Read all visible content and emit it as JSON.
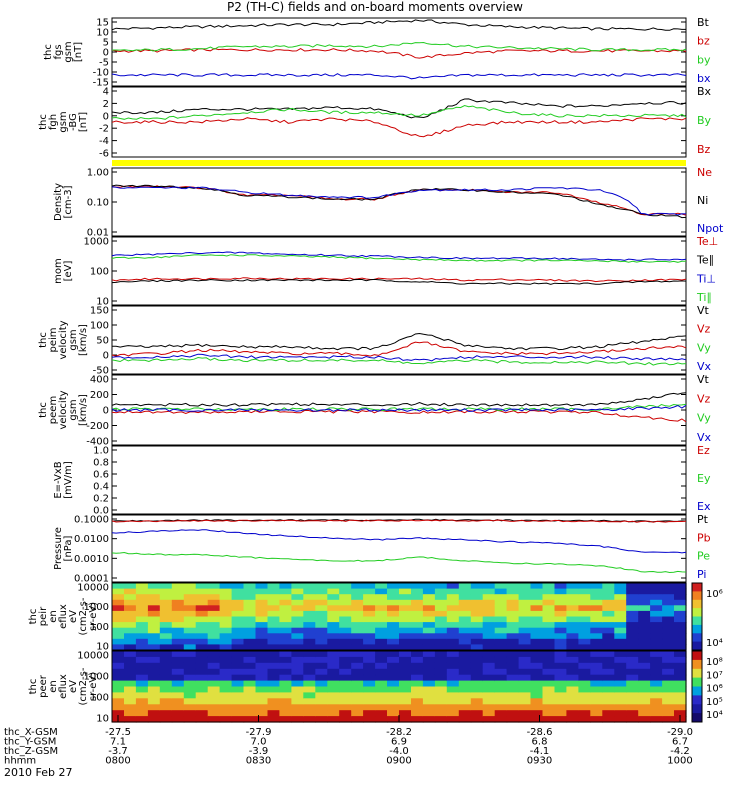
{
  "title": "P2 (TH-C) fields and on-board moments overview",
  "date_label": "2010 Feb 27",
  "colors": {
    "black": "#000000",
    "red": "#cc0000",
    "green": "#22cc22",
    "blue": "#0000cc",
    "yellow": "#ffff00"
  },
  "chart_data": [
    {
      "type": "line",
      "panel": "fgs",
      "ylabel": [
        "thc",
        "fgs",
        "gsm",
        "[nT]"
      ],
      "yticks": [
        "15",
        "10",
        "5",
        "0",
        "-5",
        "-10",
        "-15"
      ],
      "ylim": [
        -15,
        16
      ],
      "series": [
        {
          "name": "Bt",
          "color": "#000000",
          "values": [
            11,
            11.5,
            12,
            12.5,
            13,
            13,
            14,
            15,
            13,
            12,
            11.5,
            11,
            11,
            11
          ]
        },
        {
          "name": "bz",
          "color": "#cc0000",
          "values": [
            1,
            1,
            1.5,
            1.5,
            1.5,
            1.5,
            1,
            -2,
            0,
            1,
            1,
            1,
            1,
            1
          ]
        },
        {
          "name": "by",
          "color": "#22cc22",
          "values": [
            1,
            1.5,
            2,
            3,
            3,
            3.5,
            3,
            5,
            3,
            2.5,
            2,
            1.5,
            1.5,
            1.5
          ]
        },
        {
          "name": "bx",
          "color": "#0000cc",
          "values": [
            -10,
            -10,
            -10,
            -10,
            -10,
            -10,
            -10,
            -11.5,
            -10,
            -10,
            -10,
            -10,
            -10,
            -10
          ]
        }
      ]
    },
    {
      "type": "line",
      "panel": "fgh",
      "ylabel": [
        "thc",
        "fgh",
        "gsm",
        "-BG",
        "[nT]"
      ],
      "yticks": [
        "4",
        "2",
        "0",
        "-2",
        "-4",
        "-6"
      ],
      "ylim": [
        -7,
        4
      ],
      "series": [
        {
          "name": "Bx",
          "color": "#000000",
          "values": [
            0,
            0,
            0.5,
            0.5,
            0.5,
            0.8,
            0.5,
            -1,
            2,
            1.5,
            1,
            1,
            1.5,
            1.5
          ]
        },
        {
          "name": "By",
          "color": "#22cc22",
          "values": [
            -1,
            -1,
            -0.5,
            0,
            0.5,
            0,
            0,
            -0.5,
            1,
            0,
            -0.5,
            -0.5,
            -0.5,
            -0.5
          ]
        },
        {
          "name": "Bz",
          "color": "#cc0000",
          "values": [
            -1.5,
            -1.5,
            -1.5,
            -1,
            -1.5,
            -1,
            -1.5,
            -4,
            -2,
            -1.5,
            -1.5,
            -1.5,
            -1,
            -1
          ]
        }
      ]
    },
    {
      "type": "line",
      "panel": "density",
      "scale": "log",
      "ylabel": [
        "Density",
        "[cm-3]"
      ],
      "yticks": [
        "1.00",
        "0.10",
        "0.01"
      ],
      "ylim": [
        0.01,
        1.5
      ],
      "series": [
        {
          "name": "Ne",
          "color": "#cc0000",
          "values": [
            0.38,
            0.38,
            0.35,
            0.2,
            0.2,
            0.15,
            0.15,
            0.3,
            0.3,
            0.25,
            0.25,
            0.12,
            0.05,
            0.05
          ]
        },
        {
          "name": "Ni",
          "color": "#000000",
          "values": [
            0.4,
            0.4,
            0.35,
            0.2,
            0.18,
            0.15,
            0.15,
            0.32,
            0.3,
            0.25,
            0.22,
            0.1,
            0.05,
            0.04
          ]
        },
        {
          "name": "Npot",
          "color": "#0000cc",
          "values": [
            0.35,
            0.35,
            0.35,
            0.25,
            0.2,
            0.18,
            0.17,
            0.3,
            0.3,
            0.3,
            0.35,
            0.3,
            0.05,
            0.05
          ]
        }
      ]
    },
    {
      "type": "line",
      "panel": "mom",
      "scale": "log",
      "ylabel": [
        "mom",
        "[eV]"
      ],
      "yticks": [
        "1000",
        "100",
        "10"
      ],
      "ylim": [
        10,
        3000
      ],
      "series": [
        {
          "name": "Te⊥",
          "color": "#cc0000",
          "values": [
            80,
            90,
            90,
            95,
            90,
            90,
            90,
            90,
            80,
            85,
            80,
            75,
            80,
            85
          ]
        },
        {
          "name": "Te∥",
          "color": "#000000",
          "values": [
            70,
            75,
            80,
            80,
            80,
            80,
            80,
            70,
            60,
            60,
            60,
            60,
            70,
            75
          ]
        },
        {
          "name": "Ti⊥",
          "color": "#0000cc",
          "values": [
            650,
            700,
            800,
            800,
            700,
            650,
            600,
            550,
            500,
            500,
            500,
            450,
            450,
            450
          ]
        },
        {
          "name": "Ti∥",
          "color": "#22cc22",
          "values": [
            500,
            550,
            650,
            650,
            600,
            550,
            500,
            450,
            420,
            420,
            420,
            400,
            380,
            380
          ]
        }
      ]
    },
    {
      "type": "line",
      "panel": "peim",
      "ylabel": [
        "thc",
        "peim",
        "velocity",
        "gsm",
        "[km/s]"
      ],
      "yticks": [
        "150",
        "100",
        "50",
        "0",
        "-50"
      ],
      "ylim": [
        -50,
        150
      ],
      "series": [
        {
          "name": "Vt",
          "color": "#000000",
          "values": [
            30,
            30,
            35,
            30,
            30,
            25,
            25,
            70,
            35,
            25,
            25,
            30,
            45,
            60
          ]
        },
        {
          "name": "Vz",
          "color": "#cc0000",
          "values": [
            5,
            10,
            20,
            15,
            10,
            10,
            5,
            45,
            15,
            10,
            10,
            15,
            25,
            30
          ]
        },
        {
          "name": "Vy",
          "color": "#22cc22",
          "values": [
            -10,
            -10,
            -5,
            -10,
            -10,
            -10,
            -10,
            -20,
            -10,
            -15,
            -15,
            -15,
            -20,
            -20
          ]
        },
        {
          "name": "Vx",
          "color": "#0000cc",
          "values": [
            0,
            0,
            5,
            0,
            0,
            0,
            0,
            -10,
            0,
            0,
            0,
            0,
            -5,
            -5
          ]
        }
      ]
    },
    {
      "type": "line",
      "panel": "peem",
      "ylabel": [
        "thc",
        "peem",
        "velocity",
        "gsm",
        "[km/s]"
      ],
      "yticks": [
        "400",
        "200",
        "0",
        "-200",
        "-400"
      ],
      "ylim": [
        -400,
        400
      ],
      "series": [
        {
          "name": "Vt",
          "color": "#000000",
          "values": [
            60,
            60,
            60,
            60,
            70,
            60,
            60,
            70,
            60,
            60,
            60,
            60,
            120,
            200
          ]
        },
        {
          "name": "Vz",
          "color": "#cc0000",
          "values": [
            -20,
            -20,
            -30,
            -20,
            -20,
            -20,
            -20,
            -30,
            -20,
            -20,
            -20,
            -30,
            -80,
            -120
          ]
        },
        {
          "name": "Vy",
          "color": "#22cc22",
          "values": [
            10,
            10,
            10,
            10,
            10,
            10,
            10,
            10,
            10,
            10,
            10,
            10,
            40,
            60
          ]
        },
        {
          "name": "Vx",
          "color": "#0000cc",
          "values": [
            0,
            0,
            0,
            0,
            0,
            0,
            0,
            0,
            0,
            0,
            0,
            0,
            20,
            40
          ]
        }
      ]
    },
    {
      "type": "line",
      "panel": "efield",
      "ylabel": [
        "E=-VxB",
        "[mV/m]"
      ],
      "yticks": [
        "1.0",
        "0.8",
        "0.6",
        "0.4",
        "0.2",
        "0.0"
      ],
      "ylim": [
        0,
        1
      ],
      "series": [
        {
          "name": "Ez",
          "color": "#cc0000",
          "values": []
        },
        {
          "name": "Ey",
          "color": "#22cc22",
          "values": []
        },
        {
          "name": "Ex",
          "color": "#0000cc",
          "values": []
        }
      ]
    },
    {
      "type": "line",
      "panel": "pressure",
      "scale": "log",
      "ylabel": [
        "Pressure",
        "[nPa]"
      ],
      "yticks": [
        "0.1000",
        "0.0100",
        "0.0010",
        "0.0001"
      ],
      "ylim": [
        0.0001,
        0.15
      ],
      "series": [
        {
          "name": "Pt",
          "color": "#000000",
          "values": [
            0.08,
            0.08,
            0.085,
            0.085,
            0.085,
            0.085,
            0.085,
            0.09,
            0.085,
            0.085,
            0.08,
            0.08,
            0.075,
            0.075
          ]
        },
        {
          "name": "Pb",
          "color": "#cc0000",
          "values": [
            0.075,
            0.075,
            0.08,
            0.08,
            0.08,
            0.08,
            0.08,
            0.085,
            0.08,
            0.08,
            0.078,
            0.075,
            0.072,
            0.072
          ]
        },
        {
          "name": "Pe",
          "color": "#22cc22",
          "values": [
            0.0025,
            0.002,
            0.002,
            0.0015,
            0.0012,
            0.001,
            0.001,
            0.0015,
            0.001,
            0.0008,
            0.0007,
            0.0006,
            0.0003,
            0.0003
          ]
        },
        {
          "name": "Pi",
          "color": "#0000cc",
          "values": [
            0.022,
            0.025,
            0.03,
            0.02,
            0.015,
            0.012,
            0.01,
            0.012,
            0.01,
            0.008,
            0.007,
            0.005,
            0.0025,
            0.0025
          ]
        }
      ]
    },
    {
      "type": "heatmap",
      "panel": "peir",
      "ylabel": [
        "thc",
        "peir",
        "en",
        "eflux",
        "eV",
        "(cm2-s-",
        "sr-eV)"
      ],
      "yticks": [
        "10000",
        "1000",
        "100",
        "10"
      ],
      "colorbar_ticks": [
        "10⁶",
        "10⁴"
      ]
    },
    {
      "type": "heatmap",
      "panel": "peer",
      "ylabel": [
        "thc",
        "peer",
        "en",
        "eflux",
        "eV",
        "(cm2-s-",
        "sr-eV)"
      ],
      "yticks": [
        "10000",
        "1000",
        "100",
        "10"
      ],
      "colorbar_ticks": [
        "10⁸",
        "10⁷",
        "10⁶",
        "10⁵",
        "10⁴"
      ]
    }
  ],
  "x_axis": {
    "rows": [
      {
        "label": "thc_X-GSM",
        "values": [
          "-27.5",
          "-27.9",
          "-28.2",
          "-28.6",
          "-29.0"
        ]
      },
      {
        "label": "thc_Y-GSM",
        "values": [
          "7.1",
          "7.0",
          "6.9",
          "6.8",
          "6.7"
        ]
      },
      {
        "label": "thc_Z-GSM",
        "values": [
          "-3.7",
          "-3.9",
          "-4.0",
          "-4.1",
          "-4.2"
        ]
      },
      {
        "label": "hhmm",
        "values": [
          "0800",
          "0830",
          "0900",
          "0930",
          "1000"
        ]
      }
    ]
  }
}
